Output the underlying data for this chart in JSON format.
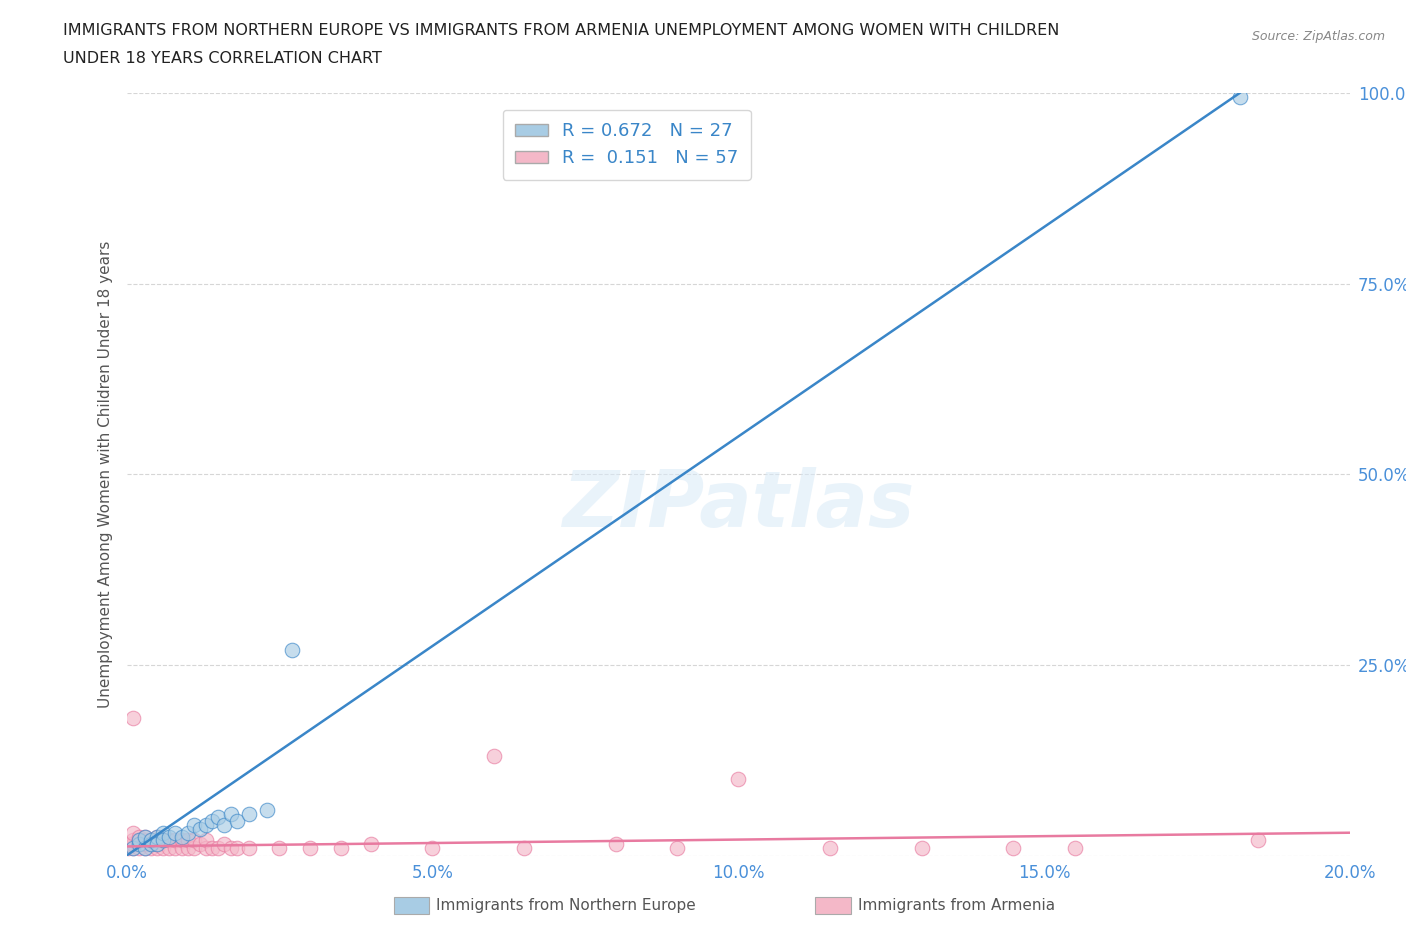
{
  "title_line1": "IMMIGRANTS FROM NORTHERN EUROPE VS IMMIGRANTS FROM ARMENIA UNEMPLOYMENT AMONG WOMEN WITH CHILDREN",
  "title_line2": "UNDER 18 YEARS CORRELATION CHART",
  "source_text": "Source: ZipAtlas.com",
  "ylabel": "Unemployment Among Women with Children Under 18 years",
  "legend_label_1": "Immigrants from Northern Europe",
  "legend_label_2": "Immigrants from Armenia",
  "R1": 0.672,
  "N1": 27,
  "R2": 0.151,
  "N2": 57,
  "color_blue": "#a8cce4",
  "color_pink": "#f4b8c8",
  "color_blue_line": "#3a86c8",
  "color_pink_line": "#e87aa0",
  "xlim": [
    0.0,
    0.2
  ],
  "ylim": [
    0.0,
    1.0
  ],
  "ne_x": [
    0.001,
    0.002,
    0.002,
    0.003,
    0.003,
    0.004,
    0.004,
    0.005,
    0.005,
    0.006,
    0.006,
    0.007,
    0.008,
    0.009,
    0.01,
    0.011,
    0.012,
    0.013,
    0.014,
    0.015,
    0.016,
    0.017,
    0.018,
    0.02,
    0.023,
    0.027,
    0.182
  ],
  "ne_y": [
    0.01,
    0.015,
    0.02,
    0.01,
    0.025,
    0.015,
    0.02,
    0.025,
    0.015,
    0.03,
    0.02,
    0.025,
    0.03,
    0.025,
    0.03,
    0.04,
    0.035,
    0.04,
    0.045,
    0.05,
    0.04,
    0.055,
    0.045,
    0.055,
    0.06,
    0.27,
    0.995
  ],
  "ar_x": [
    0.0003,
    0.0005,
    0.001,
    0.001,
    0.001,
    0.001,
    0.001,
    0.002,
    0.002,
    0.002,
    0.002,
    0.003,
    0.003,
    0.003,
    0.003,
    0.004,
    0.004,
    0.004,
    0.005,
    0.005,
    0.005,
    0.006,
    0.006,
    0.007,
    0.007,
    0.008,
    0.008,
    0.009,
    0.009,
    0.01,
    0.01,
    0.011,
    0.011,
    0.012,
    0.013,
    0.013,
    0.014,
    0.015,
    0.016,
    0.017,
    0.018,
    0.02,
    0.025,
    0.03,
    0.035,
    0.04,
    0.05,
    0.06,
    0.065,
    0.08,
    0.09,
    0.1,
    0.115,
    0.13,
    0.145,
    0.155,
    0.185
  ],
  "ar_y": [
    0.01,
    0.015,
    0.01,
    0.015,
    0.02,
    0.03,
    0.18,
    0.01,
    0.015,
    0.02,
    0.025,
    0.01,
    0.015,
    0.02,
    0.025,
    0.01,
    0.015,
    0.02,
    0.01,
    0.015,
    0.025,
    0.01,
    0.02,
    0.01,
    0.02,
    0.01,
    0.02,
    0.01,
    0.02,
    0.01,
    0.02,
    0.01,
    0.02,
    0.015,
    0.01,
    0.02,
    0.01,
    0.01,
    0.015,
    0.01,
    0.01,
    0.01,
    0.01,
    0.01,
    0.01,
    0.015,
    0.01,
    0.13,
    0.01,
    0.015,
    0.01,
    0.1,
    0.01,
    0.01,
    0.01,
    0.01,
    0.02
  ],
  "ne_line_x": [
    0.0,
    0.182
  ],
  "ne_line_y": [
    0.0,
    1.0
  ],
  "ar_line_x": [
    0.0,
    0.2
  ],
  "ar_line_y": [
    0.012,
    0.03
  ],
  "xticks": [
    0.0,
    0.05,
    0.1,
    0.15,
    0.2
  ],
  "yticks": [
    0.0,
    0.25,
    0.5,
    0.75,
    1.0
  ],
  "xtick_labels": [
    "0.0%",
    "5.0%",
    "10.0%",
    "15.0%",
    "20.0%"
  ],
  "ytick_labels": [
    "",
    "25.0%",
    "50.0%",
    "75.0%",
    "100.0%"
  ]
}
